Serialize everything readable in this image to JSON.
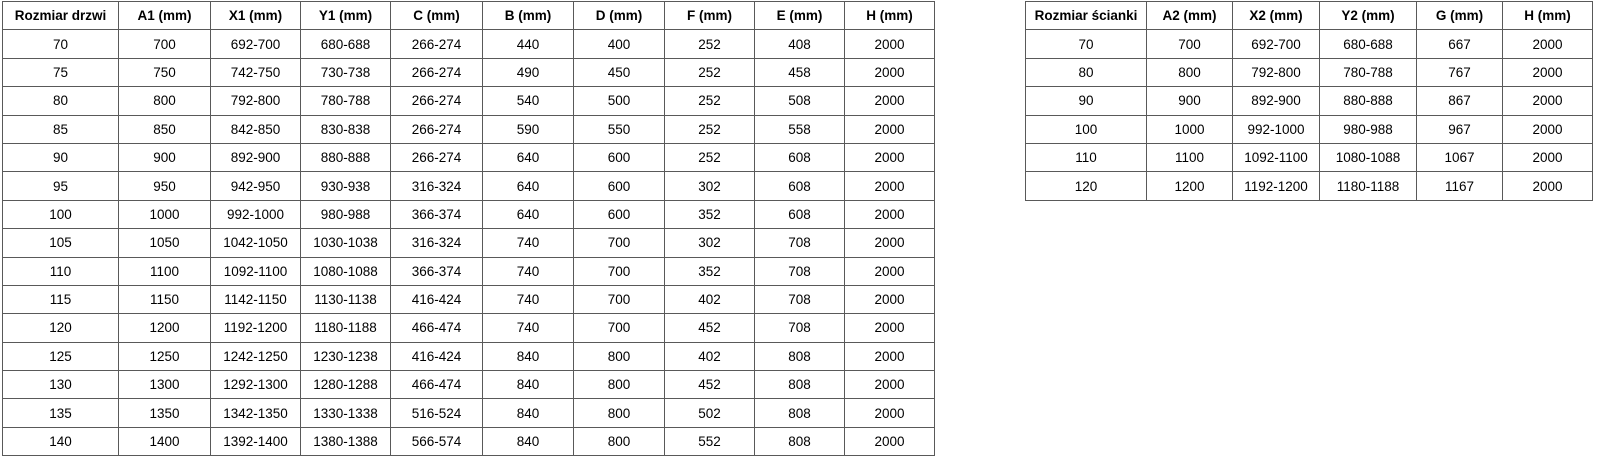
{
  "door_table": {
    "title": "Rozmiar drzwi",
    "headers": [
      "Rozmiar drzwi",
      "A1 (mm)",
      "X1 (mm)",
      "Y1 (mm)",
      "C (mm)",
      "B (mm)",
      "D (mm)",
      "F (mm)",
      "E (mm)",
      "H (mm)"
    ],
    "rows": [
      [
        "70",
        "700",
        "692-700",
        "680-688",
        "266-274",
        "440",
        "400",
        "252",
        "408",
        "2000"
      ],
      [
        "75",
        "750",
        "742-750",
        "730-738",
        "266-274",
        "490",
        "450",
        "252",
        "458",
        "2000"
      ],
      [
        "80",
        "800",
        "792-800",
        "780-788",
        "266-274",
        "540",
        "500",
        "252",
        "508",
        "2000"
      ],
      [
        "85",
        "850",
        "842-850",
        "830-838",
        "266-274",
        "590",
        "550",
        "252",
        "558",
        "2000"
      ],
      [
        "90",
        "900",
        "892-900",
        "880-888",
        "266-274",
        "640",
        "600",
        "252",
        "608",
        "2000"
      ],
      [
        "95",
        "950",
        "942-950",
        "930-938",
        "316-324",
        "640",
        "600",
        "302",
        "608",
        "2000"
      ],
      [
        "100",
        "1000",
        "992-1000",
        "980-988",
        "366-374",
        "640",
        "600",
        "352",
        "608",
        "2000"
      ],
      [
        "105",
        "1050",
        "1042-1050",
        "1030-1038",
        "316-324",
        "740",
        "700",
        "302",
        "708",
        "2000"
      ],
      [
        "110",
        "1100",
        "1092-1100",
        "1080-1088",
        "366-374",
        "740",
        "700",
        "352",
        "708",
        "2000"
      ],
      [
        "115",
        "1150",
        "1142-1150",
        "1130-1138",
        "416-424",
        "740",
        "700",
        "402",
        "708",
        "2000"
      ],
      [
        "120",
        "1200",
        "1192-1200",
        "1180-1188",
        "466-474",
        "740",
        "700",
        "452",
        "708",
        "2000"
      ],
      [
        "125",
        "1250",
        "1242-1250",
        "1230-1238",
        "416-424",
        "840",
        "800",
        "402",
        "808",
        "2000"
      ],
      [
        "130",
        "1300",
        "1292-1300",
        "1280-1288",
        "466-474",
        "840",
        "800",
        "452",
        "808",
        "2000"
      ],
      [
        "135",
        "1350",
        "1342-1350",
        "1330-1338",
        "516-524",
        "840",
        "800",
        "502",
        "808",
        "2000"
      ],
      [
        "140",
        "1400",
        "1392-1400",
        "1380-1388",
        "566-574",
        "840",
        "800",
        "552",
        "808",
        "2000"
      ]
    ]
  },
  "wall_table": {
    "title": "Rozmiar ścianki",
    "headers": [
      "Rozmiar ścianki",
      "A2 (mm)",
      "X2 (mm)",
      "Y2 (mm)",
      "G (mm)",
      "H (mm)"
    ],
    "rows": [
      [
        "70",
        "700",
        "692-700",
        "680-688",
        "667",
        "2000"
      ],
      [
        "80",
        "800",
        "792-800",
        "780-788",
        "767",
        "2000"
      ],
      [
        "90",
        "900",
        "892-900",
        "880-888",
        "867",
        "2000"
      ],
      [
        "100",
        "1000",
        "992-1000",
        "980-988",
        "967",
        "2000"
      ],
      [
        "110",
        "1100",
        "1092-1100",
        "1080-1088",
        "1067",
        "2000"
      ],
      [
        "120",
        "1200",
        "1192-1200",
        "1180-1188",
        "1167",
        "2000"
      ]
    ]
  },
  "colors": {
    "border": "#595959",
    "text": "#000000",
    "background": "#ffffff"
  }
}
